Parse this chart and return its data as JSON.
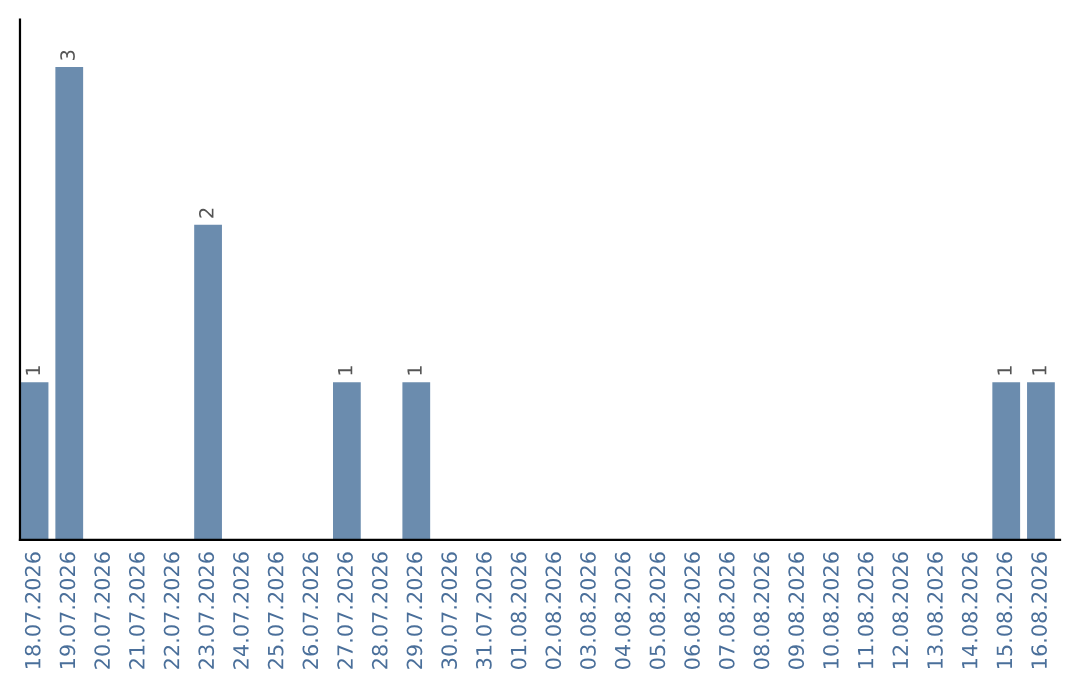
{
  "chart_data": {
    "type": "bar",
    "categories": [
      "18.07.2026",
      "19.07.2026",
      "20.07.2026",
      "21.07.2026",
      "22.07.2026",
      "23.07.2026",
      "24.07.2026",
      "25.07.2026",
      "26.07.2026",
      "27.07.2026",
      "28.07.2026",
      "29.07.2026",
      "30.07.2026",
      "31.07.2026",
      "01.08.2026",
      "02.08.2026",
      "03.08.2026",
      "04.08.2026",
      "05.08.2026",
      "06.08.2026",
      "07.08.2026",
      "08.08.2026",
      "09.08.2026",
      "10.08.2026",
      "11.08.2026",
      "12.08.2026",
      "13.08.2026",
      "14.08.2026",
      "15.08.2026",
      "16.08.2026"
    ],
    "values": [
      1,
      3,
      0,
      0,
      0,
      2,
      0,
      0,
      0,
      1,
      0,
      1,
      0,
      0,
      0,
      0,
      0,
      0,
      0,
      0,
      0,
      0,
      0,
      0,
      0,
      0,
      0,
      0,
      1,
      1
    ],
    "value_labels": [
      "1",
      "3",
      null,
      null,
      null,
      "2",
      null,
      null,
      null,
      "1",
      null,
      "1",
      null,
      null,
      null,
      null,
      null,
      null,
      null,
      null,
      null,
      null,
      null,
      null,
      null,
      null,
      null,
      null,
      "1",
      "1"
    ],
    "color": "#6b8cae",
    "tick_labels": "x",
    "grid": false,
    "legend": false
  }
}
